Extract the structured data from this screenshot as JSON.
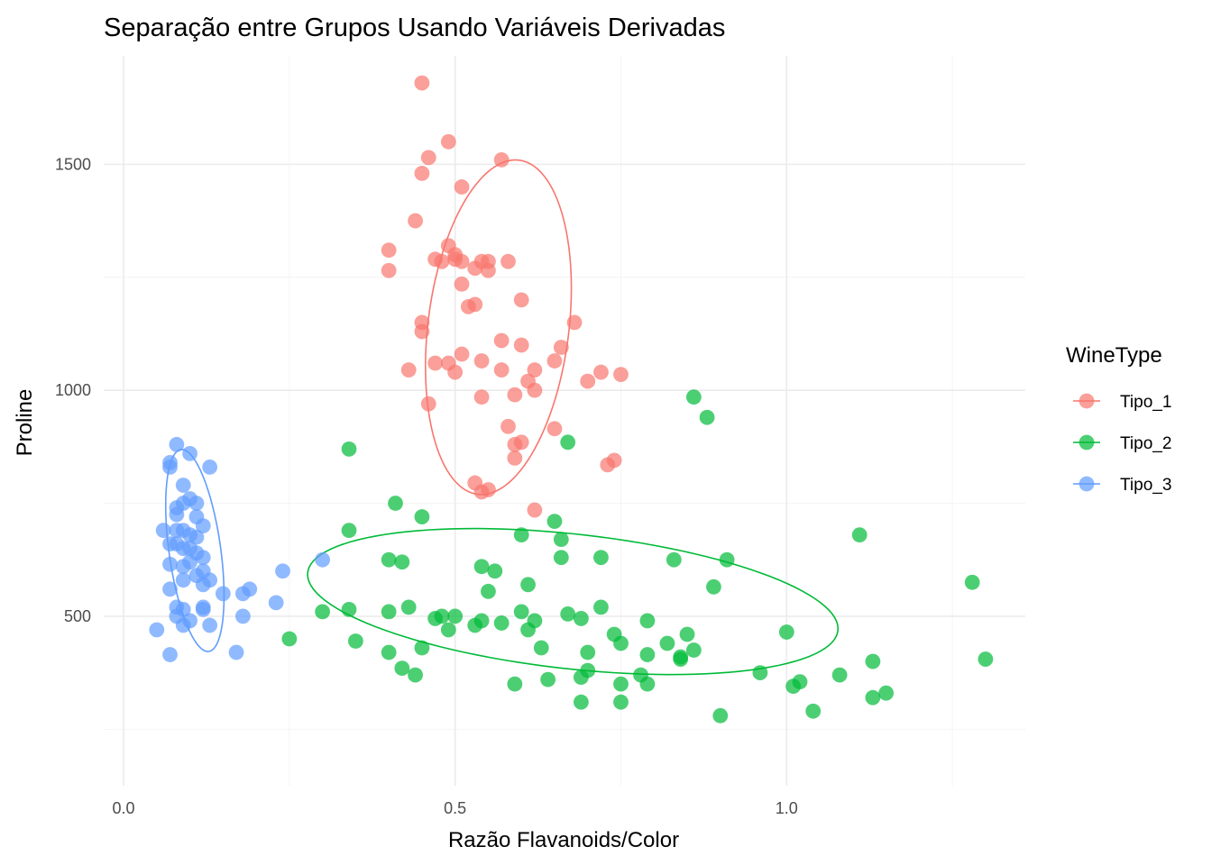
{
  "chart_data": {
    "type": "scatter",
    "title": "Separação entre Grupos Usando Variáveis Derivadas",
    "xlabel": "Razão Flavanoids/Color",
    "ylabel": "Proline",
    "xlim": [
      -0.03,
      1.36
    ],
    "ylim": [
      125,
      1740
    ],
    "x_ticks": [
      0.0,
      0.5,
      1.0
    ],
    "x_tick_labels": [
      "0.0",
      "0.5",
      "1.0"
    ],
    "y_ticks": [
      500,
      1000,
      1500
    ],
    "y_tick_labels": [
      "500",
      "1000",
      "1500"
    ],
    "grid": true,
    "legend": {
      "title": "WineType",
      "position": "right"
    },
    "series": [
      {
        "name": "Tipo_1",
        "color": "#F8766D",
        "x": [
          0.45,
          0.49,
          0.46,
          0.57,
          0.45,
          0.51,
          0.44,
          0.4,
          0.4,
          0.49,
          0.5,
          0.47,
          0.48,
          0.5,
          0.51,
          0.54,
          0.55,
          0.53,
          0.55,
          0.58,
          0.51,
          0.53,
          0.6,
          0.45,
          0.68,
          0.52,
          0.45,
          0.57,
          0.6,
          0.66,
          0.51,
          0.43,
          0.47,
          0.49,
          0.5,
          0.54,
          0.57,
          0.61,
          0.62,
          0.65,
          0.72,
          0.75,
          0.7,
          0.59,
          0.62,
          0.46,
          0.54,
          0.58,
          0.6,
          0.65,
          0.59,
          0.59,
          0.74,
          0.73,
          0.53,
          0.55,
          0.54,
          0.62
        ],
        "y": [
          1680,
          1550,
          1515,
          1510,
          1480,
          1450,
          1375,
          1310,
          1265,
          1320,
          1300,
          1290,
          1285,
          1290,
          1285,
          1285,
          1285,
          1270,
          1265,
          1285,
          1235,
          1190,
          1200,
          1150,
          1150,
          1185,
          1130,
          1110,
          1100,
          1095,
          1080,
          1045,
          1060,
          1060,
          1040,
          1065,
          1045,
          1020,
          1045,
          1065,
          1040,
          1035,
          1020,
          990,
          1000,
          970,
          985,
          920,
          885,
          915,
          880,
          850,
          845,
          835,
          795,
          780,
          775,
          735
        ]
      },
      {
        "name": "Tipo_2",
        "color": "#00BA38",
        "x": [
          0.86,
          0.88,
          0.67,
          0.34,
          0.41,
          0.45,
          0.55,
          0.65,
          0.66,
          0.56,
          0.6,
          0.34,
          0.4,
          0.54,
          0.6,
          0.66,
          0.72,
          0.42,
          0.47,
          0.53,
          0.62,
          0.67,
          0.79,
          0.57,
          0.61,
          0.85,
          0.89,
          1.11,
          0.91,
          0.83,
          1.28,
          1.3,
          0.3,
          0.34,
          0.43,
          0.4,
          0.45,
          0.42,
          0.48,
          0.49,
          0.5,
          0.54,
          0.61,
          0.63,
          0.69,
          0.72,
          0.74,
          0.75,
          0.82,
          0.84,
          0.86,
          1.0,
          0.25,
          0.35,
          0.4,
          0.44,
          0.59,
          0.64,
          0.69,
          0.7,
          0.75,
          0.79,
          0.78,
          0.84,
          0.96,
          1.01,
          1.02,
          1.08,
          1.13,
          1.15,
          0.7,
          0.79,
          0.69,
          0.75,
          0.9,
          1.04,
          1.13
        ],
        "y": [
          985,
          940,
          885,
          870,
          750,
          720,
          555,
          710,
          670,
          600,
          680,
          690,
          625,
          610,
          510,
          630,
          630,
          620,
          495,
          480,
          490,
          505,
          490,
          485,
          570,
          460,
          565,
          680,
          625,
          625,
          575,
          405,
          510,
          515,
          520,
          510,
          430,
          385,
          500,
          470,
          500,
          490,
          470,
          430,
          495,
          520,
          460,
          440,
          440,
          405,
          425,
          465,
          450,
          445,
          420,
          370,
          350,
          360,
          365,
          380,
          310,
          350,
          370,
          410,
          375,
          345,
          355,
          370,
          320,
          330,
          420,
          415,
          310,
          350,
          280,
          290,
          400
        ]
      },
      {
        "name": "Tipo_3",
        "color": "#619CFF",
        "x": [
          0.08,
          0.07,
          0.1,
          0.13,
          0.07,
          0.09,
          0.1,
          0.11,
          0.09,
          0.08,
          0.08,
          0.11,
          0.12,
          0.06,
          0.08,
          0.09,
          0.1,
          0.11,
          0.07,
          0.08,
          0.09,
          0.1,
          0.11,
          0.12,
          0.1,
          0.07,
          0.09,
          0.12,
          0.11,
          0.13,
          0.09,
          0.12,
          0.07,
          0.08,
          0.09,
          0.12,
          0.12,
          0.15,
          0.18,
          0.19,
          0.23,
          0.24,
          0.3,
          0.05,
          0.07,
          0.08,
          0.09,
          0.1,
          0.18,
          0.13,
          0.17
        ],
        "y": [
          880,
          840,
          860,
          830,
          830,
          790,
          760,
          750,
          750,
          740,
          725,
          720,
          700,
          690,
          690,
          690,
          680,
          675,
          660,
          660,
          650,
          650,
          640,
          630,
          620,
          615,
          610,
          600,
          590,
          580,
          580,
          570,
          560,
          520,
          515,
          515,
          520,
          550,
          550,
          560,
          530,
          600,
          625,
          470,
          415,
          500,
          480,
          490,
          500,
          480,
          420
        ]
      }
    ],
    "ellipses": [
      {
        "series": "Tipo_1",
        "center": [
          0.5653,
          1139.5
        ],
        "radii": [
          0.11,
          360
        ],
        "tilt_ratio": 0.24
      },
      {
        "series": "Tipo_2",
        "center": [
          0.6775,
          532.5
        ],
        "radii": [
          0.4,
          150
        ],
        "tilt_ratio": -0.4
      },
      {
        "series": "Tipo_3",
        "center": [
          0.1075,
          645.5
        ],
        "radii": [
          0.044,
          200
        ],
        "tilt_ratio": -0.5
      }
    ]
  }
}
